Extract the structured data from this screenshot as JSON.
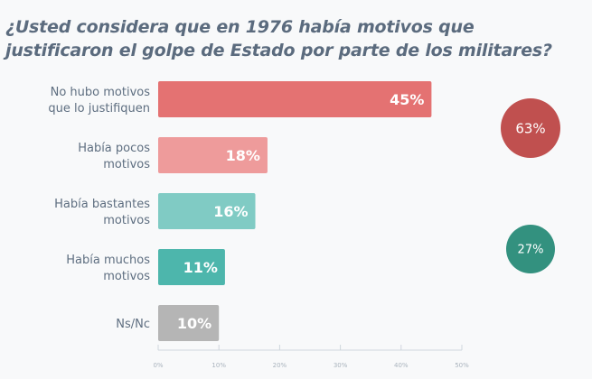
{
  "title": "¿Usted considera que en 1976 había motivos que justificaron el golpe de Estado por parte de los militares?",
  "chart_data": {
    "type": "bar",
    "orientation": "horizontal",
    "title": "¿Usted considera que en 1976 había motivos que justificaron el golpe de Estado por parte de los militares?",
    "xlabel": "",
    "ylabel": "",
    "xlim": [
      0,
      50
    ],
    "grid": false,
    "ticks": [
      0,
      10,
      20,
      30,
      40,
      50
    ],
    "tick_labels": [
      "0%",
      "10%",
      "20%",
      "30%",
      "40%",
      "50%"
    ],
    "categories": [
      [
        "No hubo motivos",
        "que lo justifiquen"
      ],
      [
        "Había pocos",
        "motivos"
      ],
      [
        "Había bastantes",
        "motivos"
      ],
      [
        "Había muchos",
        "motivos"
      ],
      [
        "Ns/Nc"
      ]
    ],
    "values": [
      45,
      18,
      16,
      11,
      10
    ],
    "value_labels": [
      "45%",
      "18%",
      "16%",
      "11%",
      "10%"
    ],
    "colors": [
      "#e47272",
      "#ee9b9b",
      "#80cbc4",
      "#4db6ac",
      "#b5b5b5"
    ],
    "groups": [
      {
        "label": "63%",
        "value": 63,
        "color": "#c0504f",
        "members": [
          0,
          1
        ]
      },
      {
        "label": "27%",
        "value": 27,
        "color": "#33917f",
        "members": [
          2,
          3
        ]
      }
    ]
  }
}
